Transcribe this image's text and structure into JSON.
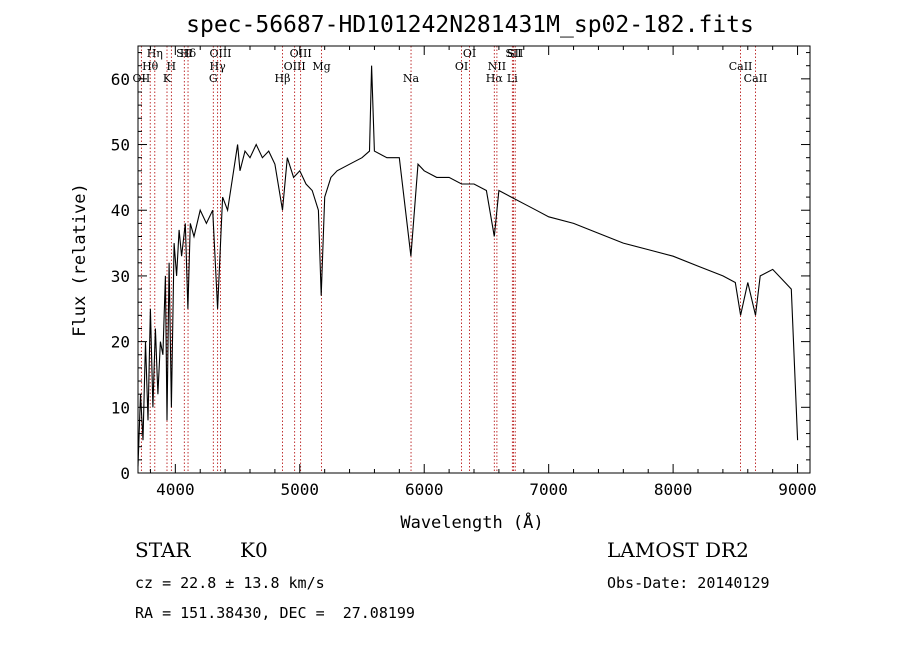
{
  "chart_data": {
    "type": "line",
    "title": "spec-56687-HD101242N281431M_sp02-182.fits",
    "xlabel": "Wavelength (Å)",
    "ylabel": "Flux (relative)",
    "xlim": [
      3700,
      9100
    ],
    "ylim": [
      0,
      65
    ],
    "x_ticks": [
      4000,
      5000,
      6000,
      7000,
      8000,
      9000
    ],
    "y_ticks": [
      0,
      10,
      20,
      30,
      40,
      50,
      60
    ],
    "grid": false,
    "series": [
      {
        "x": [
          3700,
          3720,
          3740,
          3760,
          3780,
          3800,
          3820,
          3840,
          3860,
          3880,
          3900,
          3920,
          3933,
          3950,
          3968,
          3990,
          4010,
          4030,
          4050,
          4080,
          4101,
          4120,
          4150,
          4200,
          4250,
          4300,
          4340,
          4380,
          4420,
          4460,
          4500,
          4520,
          4560,
          4600,
          4650,
          4700,
          4750,
          4800,
          4861,
          4900,
          4950,
          5000,
          5050,
          5100,
          5150,
          5172,
          5183,
          5200,
          5250,
          5300,
          5400,
          5500,
          5560,
          5577,
          5600,
          5700,
          5800,
          5893,
          5950,
          6000,
          6100,
          6200,
          6300,
          6400,
          6500,
          6563,
          6600,
          6700,
          6800,
          6900,
          7000,
          7200,
          7400,
          7600,
          7800,
          8000,
          8200,
          8400,
          8500,
          8542,
          8600,
          8662,
          8700,
          8800,
          8900,
          8950,
          9000
        ],
        "y": [
          1,
          12,
          5,
          20,
          8,
          25,
          10,
          22,
          12,
          20,
          18,
          30,
          8,
          32,
          10,
          35,
          30,
          37,
          33,
          38,
          25,
          38,
          36,
          40,
          38,
          40,
          25,
          42,
          40,
          45,
          50,
          46,
          49,
          48,
          50,
          48,
          49,
          47,
          40,
          48,
          45,
          46,
          44,
          43,
          40,
          27,
          33,
          42,
          45,
          46,
          47,
          48,
          49,
          62,
          49,
          48,
          48,
          33,
          47,
          46,
          45,
          45,
          44,
          44,
          43,
          36,
          43,
          42,
          41,
          40,
          39,
          38,
          36.5,
          35,
          34,
          33,
          31.5,
          30,
          29,
          24,
          29,
          24,
          30,
          31,
          29,
          28,
          5
        ]
      }
    ],
    "spectral_lines": [
      {
        "label": "Hη",
        "x": 3835
      },
      {
        "label": "Hθ",
        "x": 3798
      },
      {
        "label": "OII",
        "x": 3727
      },
      {
        "label": "SII",
        "x": 4072
      },
      {
        "label": "H",
        "x": 3968
      },
      {
        "label": "K",
        "x": 3933
      },
      {
        "label": "Hδ",
        "x": 4102
      },
      {
        "label": "Hγ",
        "x": 4340
      },
      {
        "label": "G",
        "x": 4305
      },
      {
        "label": "OIII",
        "x": 4363
      },
      {
        "label": "OIII",
        "x": 4959
      },
      {
        "label": "Hβ",
        "x": 4861
      },
      {
        "label": "OIII",
        "x": 5007
      },
      {
        "label": "Mg",
        "x": 5175
      },
      {
        "label": "Na",
        "x": 5894
      },
      {
        "label": "OI",
        "x": 6364
      },
      {
        "label": "OI",
        "x": 6300
      },
      {
        "label": "Hα",
        "x": 6563
      },
      {
        "label": "SII",
        "x": 6717
      },
      {
        "label": "NII",
        "x": 6584
      },
      {
        "label": "Li",
        "x": 6708
      },
      {
        "label": "SII",
        "x": 6731
      },
      {
        "label": "CaII",
        "x": 8542
      },
      {
        "label": "CaII",
        "x": 8662
      }
    ]
  },
  "info": {
    "class": "STAR",
    "subclass": "K0",
    "survey": "LAMOST DR2",
    "cz": "cz = 22.8 ± 13.8 km/s",
    "obs_date": "Obs-Date: 20140129",
    "coords": "RA = 151.38430, DEC =  27.08199"
  }
}
